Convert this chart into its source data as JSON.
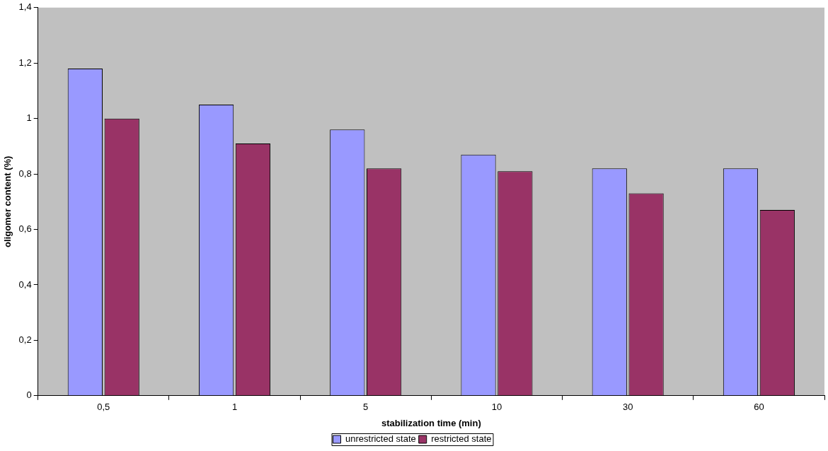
{
  "chart_data": {
    "type": "bar",
    "xlabel": "stabilization time (min)",
    "ylabel": "oligomer content (%)",
    "categories": [
      "0,5",
      "1",
      "5",
      "10",
      "30",
      "60"
    ],
    "series": [
      {
        "name": "unrestricted state",
        "color": "#9999ff",
        "values": [
          1.18,
          1.05,
          0.96,
          0.87,
          0.82,
          0.82
        ]
      },
      {
        "name": "restricted state",
        "color": "#993366",
        "values": [
          1.0,
          0.91,
          0.82,
          0.81,
          0.73,
          0.67
        ]
      }
    ],
    "ylim": [
      0,
      1.4
    ],
    "yticks": [
      0,
      {
        "value": 0.2,
        "label": "0,2"
      },
      {
        "value": 0.4,
        "label": "0,4"
      },
      {
        "value": 0.6,
        "label": "0,6"
      },
      {
        "value": 0.8,
        "label": "0,8"
      },
      1,
      {
        "value": 1.2,
        "label": "1,2"
      },
      {
        "value": 1.4,
        "label": "1,4"
      }
    ],
    "grid": false,
    "legend": "bottom"
  }
}
